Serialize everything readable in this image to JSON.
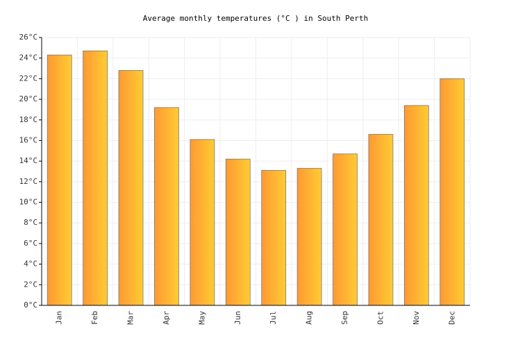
{
  "chart_data": {
    "type": "bar",
    "title": "Average monthly temperatures (°C ) in South Perth",
    "categories": [
      "Jan",
      "Feb",
      "Mar",
      "Apr",
      "May",
      "Jun",
      "Jul",
      "Aug",
      "Sep",
      "Oct",
      "Nov",
      "Dec"
    ],
    "values": [
      24.3,
      24.7,
      22.8,
      19.2,
      16.1,
      14.2,
      13.1,
      13.3,
      14.7,
      16.6,
      19.4,
      22.0
    ],
    "colors": [
      "#ff9933",
      "#ffcc33"
    ],
    "ylim": [
      0,
      26
    ],
    "yticks": [
      {
        "value": 0,
        "label": "0°C"
      },
      {
        "value": 2,
        "label": "2°C"
      },
      {
        "value": 4,
        "label": "4°C"
      },
      {
        "value": 6,
        "label": "6°C"
      },
      {
        "value": 8,
        "label": "8°C"
      },
      {
        "value": 10,
        "label": "10°C"
      },
      {
        "value": 12,
        "label": "12°C"
      },
      {
        "value": 14,
        "label": "14°C"
      },
      {
        "value": 16,
        "label": "16°C"
      },
      {
        "value": 18,
        "label": "18°C"
      },
      {
        "value": 20,
        "label": "20°C"
      },
      {
        "value": 22,
        "label": "22°C"
      },
      {
        "value": 24,
        "label": "24°C"
      },
      {
        "value": 26,
        "label": "26°C"
      }
    ],
    "grid": true
  }
}
